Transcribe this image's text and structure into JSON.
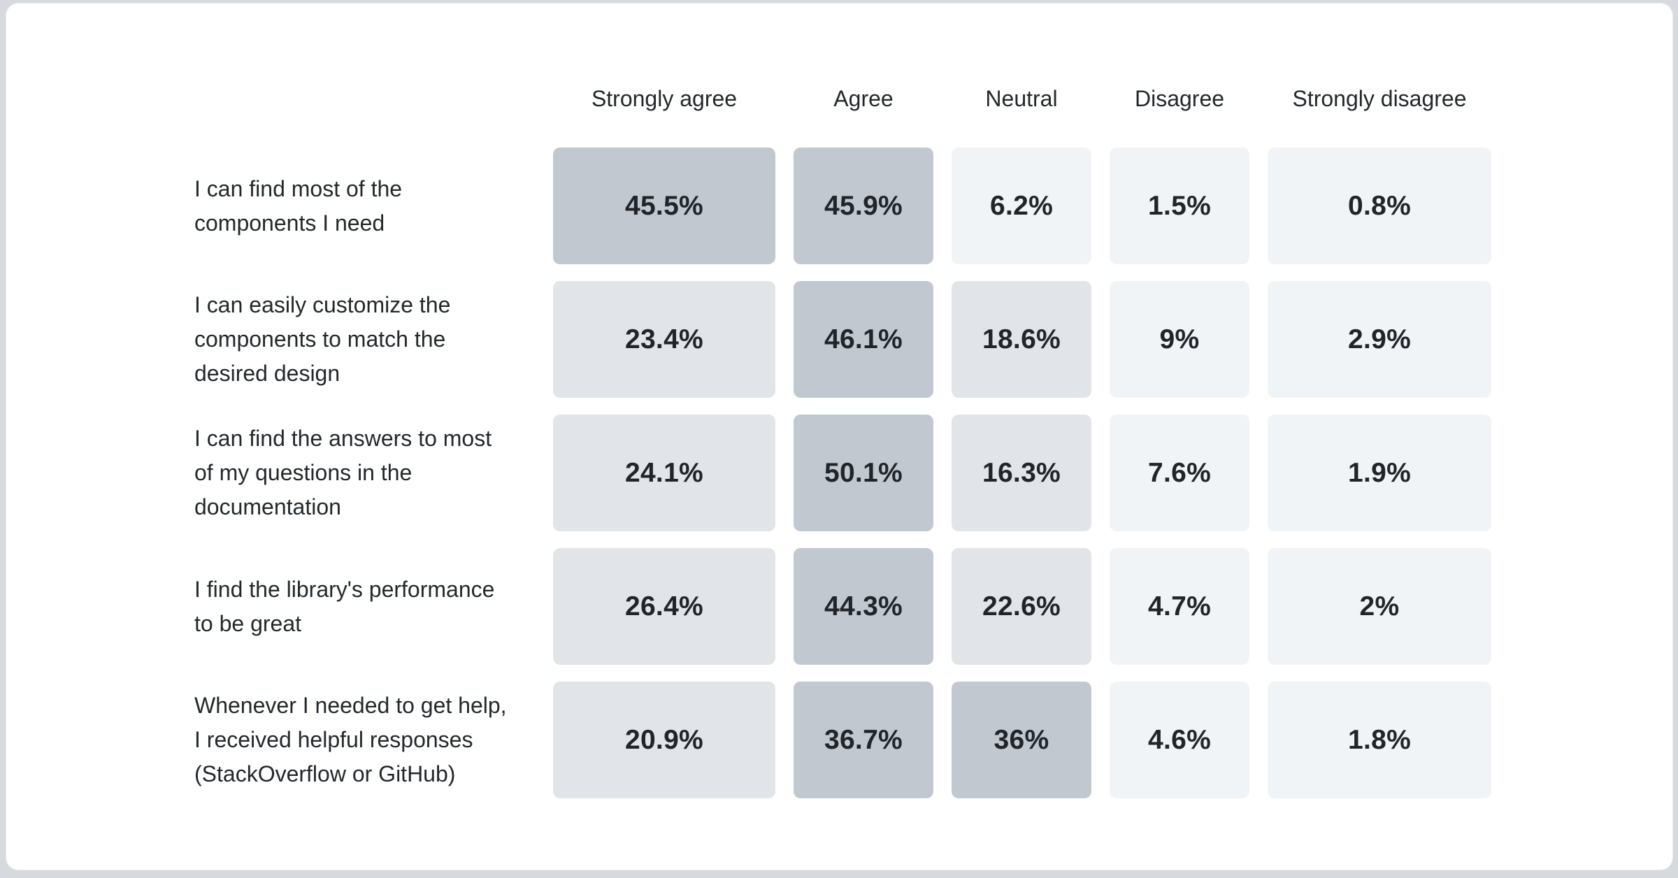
{
  "page": {
    "background_color": "#d6d9dd",
    "card_background_color": "#ffffff"
  },
  "chart_data": {
    "type": "heatmap",
    "title": "",
    "legend_position": "none",
    "grid": false,
    "columns": [
      "Strongly agree",
      "Agree",
      "Neutral",
      "Disagree",
      "Strongly disagree"
    ],
    "rows": [
      {
        "label": "I can find most of the\ncomponents I need",
        "values": [
          45.5,
          45.9,
          6.2,
          1.5,
          0.8
        ],
        "display_values": [
          "45.5%",
          "45.9%",
          "6.2%",
          "1.5%",
          "0.8%"
        ]
      },
      {
        "label": "I can easily customize the\ncomponents to match the\ndesired design",
        "values": [
          23.4,
          46.1,
          18.6,
          9,
          2.9
        ],
        "display_values": [
          "23.4%",
          "46.1%",
          "18.6%",
          "9%",
          "2.9%"
        ]
      },
      {
        "label": "I can find the answers to most\nof my questions in the\ndocumentation",
        "values": [
          24.1,
          50.1,
          16.3,
          7.6,
          1.9
        ],
        "display_values": [
          "24.1%",
          "50.1%",
          "16.3%",
          "7.6%",
          "1.9%"
        ]
      },
      {
        "label": "I find the library's performance\nto be great",
        "values": [
          26.4,
          44.3,
          22.6,
          4.7,
          2
        ],
        "display_values": [
          "26.4%",
          "44.3%",
          "22.6%",
          "4.7%",
          "2%"
        ]
      },
      {
        "label": "Whenever I needed to get help,\nI received helpful responses\n(StackOverflow or GitHub)",
        "values": [
          20.9,
          36.7,
          36,
          4.6,
          1.8
        ],
        "display_values": [
          "20.9%",
          "36.7%",
          "36%",
          "4.6%",
          "1.8%"
        ]
      }
    ],
    "color_scale": [
      {
        "max": 10,
        "color": "#f1f4f7"
      },
      {
        "max": 30,
        "color": "#e1e5e9"
      },
      {
        "max": 100,
        "color": "#c1c8d0"
      }
    ]
  }
}
